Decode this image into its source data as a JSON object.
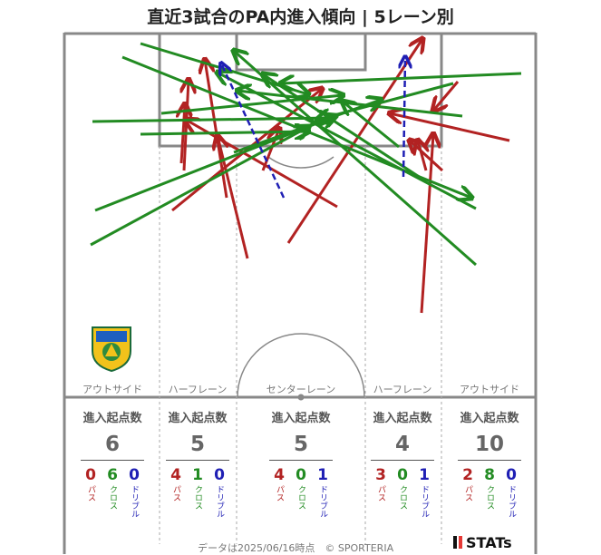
{
  "title": "直近3試合のPA内進入傾向 | 5レーン別",
  "lanes": [
    {
      "name": "アウトサイド",
      "label": "進入起点数",
      "total": "6",
      "pass": "0",
      "cross": "6",
      "dribble": "0"
    },
    {
      "name": "ハーフレーン",
      "label": "進入起点数",
      "total": "5",
      "pass": "4",
      "cross": "1",
      "dribble": "0"
    },
    {
      "name": "センターレーン",
      "label": "進入起点数",
      "total": "5",
      "pass": "4",
      "cross": "0",
      "dribble": "1"
    },
    {
      "name": "ハーフレーン",
      "label": "進入起点数",
      "total": "4",
      "pass": "3",
      "cross": "0",
      "dribble": "1"
    },
    {
      "name": "アウトサイド",
      "label": "進入起点数",
      "total": "10",
      "pass": "2",
      "cross": "8",
      "dribble": "0"
    }
  ],
  "type_labels": {
    "pass": "パス",
    "cross": "クロス",
    "dribble": "ドリブル"
  },
  "footer": "データは2025/06/16時点　© SPORTERIA",
  "brand": "STATs",
  "colors": {
    "pass": "#b22222",
    "cross": "#228b22",
    "dribble": "#1f1fb4",
    "pitch": "#888888"
  },
  "chart_data": {
    "type": "scatter",
    "description_kind": "pitch arrows (start → end), arrows by entry type",
    "arrows": [
      {
        "type": "pass",
        "from": [
          203,
          188
        ],
        "to": [
          208,
          88
        ]
      },
      {
        "type": "pass",
        "from": [
          200,
          180
        ],
        "to": [
          204,
          115
        ]
      },
      {
        "type": "pass",
        "from": [
          250,
          218
        ],
        "to": [
          226,
          66
        ]
      },
      {
        "type": "pass",
        "from": [
          273,
          285
        ],
        "to": [
          240,
          150
        ]
      },
      {
        "type": "pass",
        "from": [
          190,
          232
        ],
        "to": [
          355,
          98
        ]
      },
      {
        "type": "pass",
        "from": [
          290,
          188
        ],
        "to": [
          308,
          142
        ]
      },
      {
        "type": "pass",
        "from": [
          372,
          228
        ],
        "to": [
          205,
          132
        ]
      },
      {
        "type": "pass",
        "from": [
          318,
          268
        ],
        "to": [
          466,
          43
        ]
      },
      {
        "type": "pass",
        "from": [
          562,
          155
        ],
        "to": [
          430,
          125
        ]
      },
      {
        "type": "pass",
        "from": [
          465,
          345
        ],
        "to": [
          478,
          148
        ]
      },
      {
        "type": "pass",
        "from": [
          488,
          188
        ],
        "to": [
          452,
          155
        ]
      },
      {
        "type": "pass",
        "from": [
          505,
          90
        ],
        "to": [
          478,
          122
        ]
      },
      {
        "type": "pass",
        "from": [
          470,
          188
        ],
        "to": [
          461,
          155
        ]
      },
      {
        "type": "cross",
        "from": [
          155,
          48
        ],
        "to": [
          340,
          104
        ]
      },
      {
        "type": "cross",
        "from": [
          135,
          63
        ],
        "to": [
          520,
          218
        ]
      },
      {
        "type": "cross",
        "from": [
          102,
          134
        ],
        "to": [
          365,
          130
        ]
      },
      {
        "type": "cross",
        "from": [
          155,
          148
        ],
        "to": [
          340,
          145
        ]
      },
      {
        "type": "cross",
        "from": [
          105,
          232
        ],
        "to": [
          370,
          128
        ]
      },
      {
        "type": "cross",
        "from": [
          100,
          270
        ],
        "to": [
          340,
          140
        ]
      },
      {
        "type": "cross",
        "from": [
          178,
          125
        ],
        "to": [
          378,
          105
        ]
      },
      {
        "type": "cross",
        "from": [
          525,
          292
        ],
        "to": [
          258,
          56
        ]
      },
      {
        "type": "cross",
        "from": [
          525,
          230
        ],
        "to": [
          240,
          80
        ]
      },
      {
        "type": "cross",
        "from": [
          575,
          81
        ],
        "to": [
          310,
          92
        ]
      },
      {
        "type": "cross",
        "from": [
          510,
          128
        ],
        "to": [
          262,
          100
        ]
      },
      {
        "type": "cross",
        "from": [
          500,
          92
        ],
        "to": [
          350,
          132
        ]
      },
      {
        "type": "cross",
        "from": [
          440,
          162
        ],
        "to": [
          378,
          112
        ]
      },
      {
        "type": "cross",
        "from": [
          258,
          168
        ],
        "to": [
          420,
          110
        ]
      },
      {
        "type": "cross",
        "from": [
          470,
          200
        ],
        "to": [
          290,
          82
        ]
      },
      {
        "type": "dribble",
        "from": [
          313,
          218
        ],
        "to": [
          244,
          70
        ]
      },
      {
        "type": "dribble",
        "from": [
          445,
          195
        ],
        "to": [
          447,
          63
        ]
      }
    ]
  }
}
